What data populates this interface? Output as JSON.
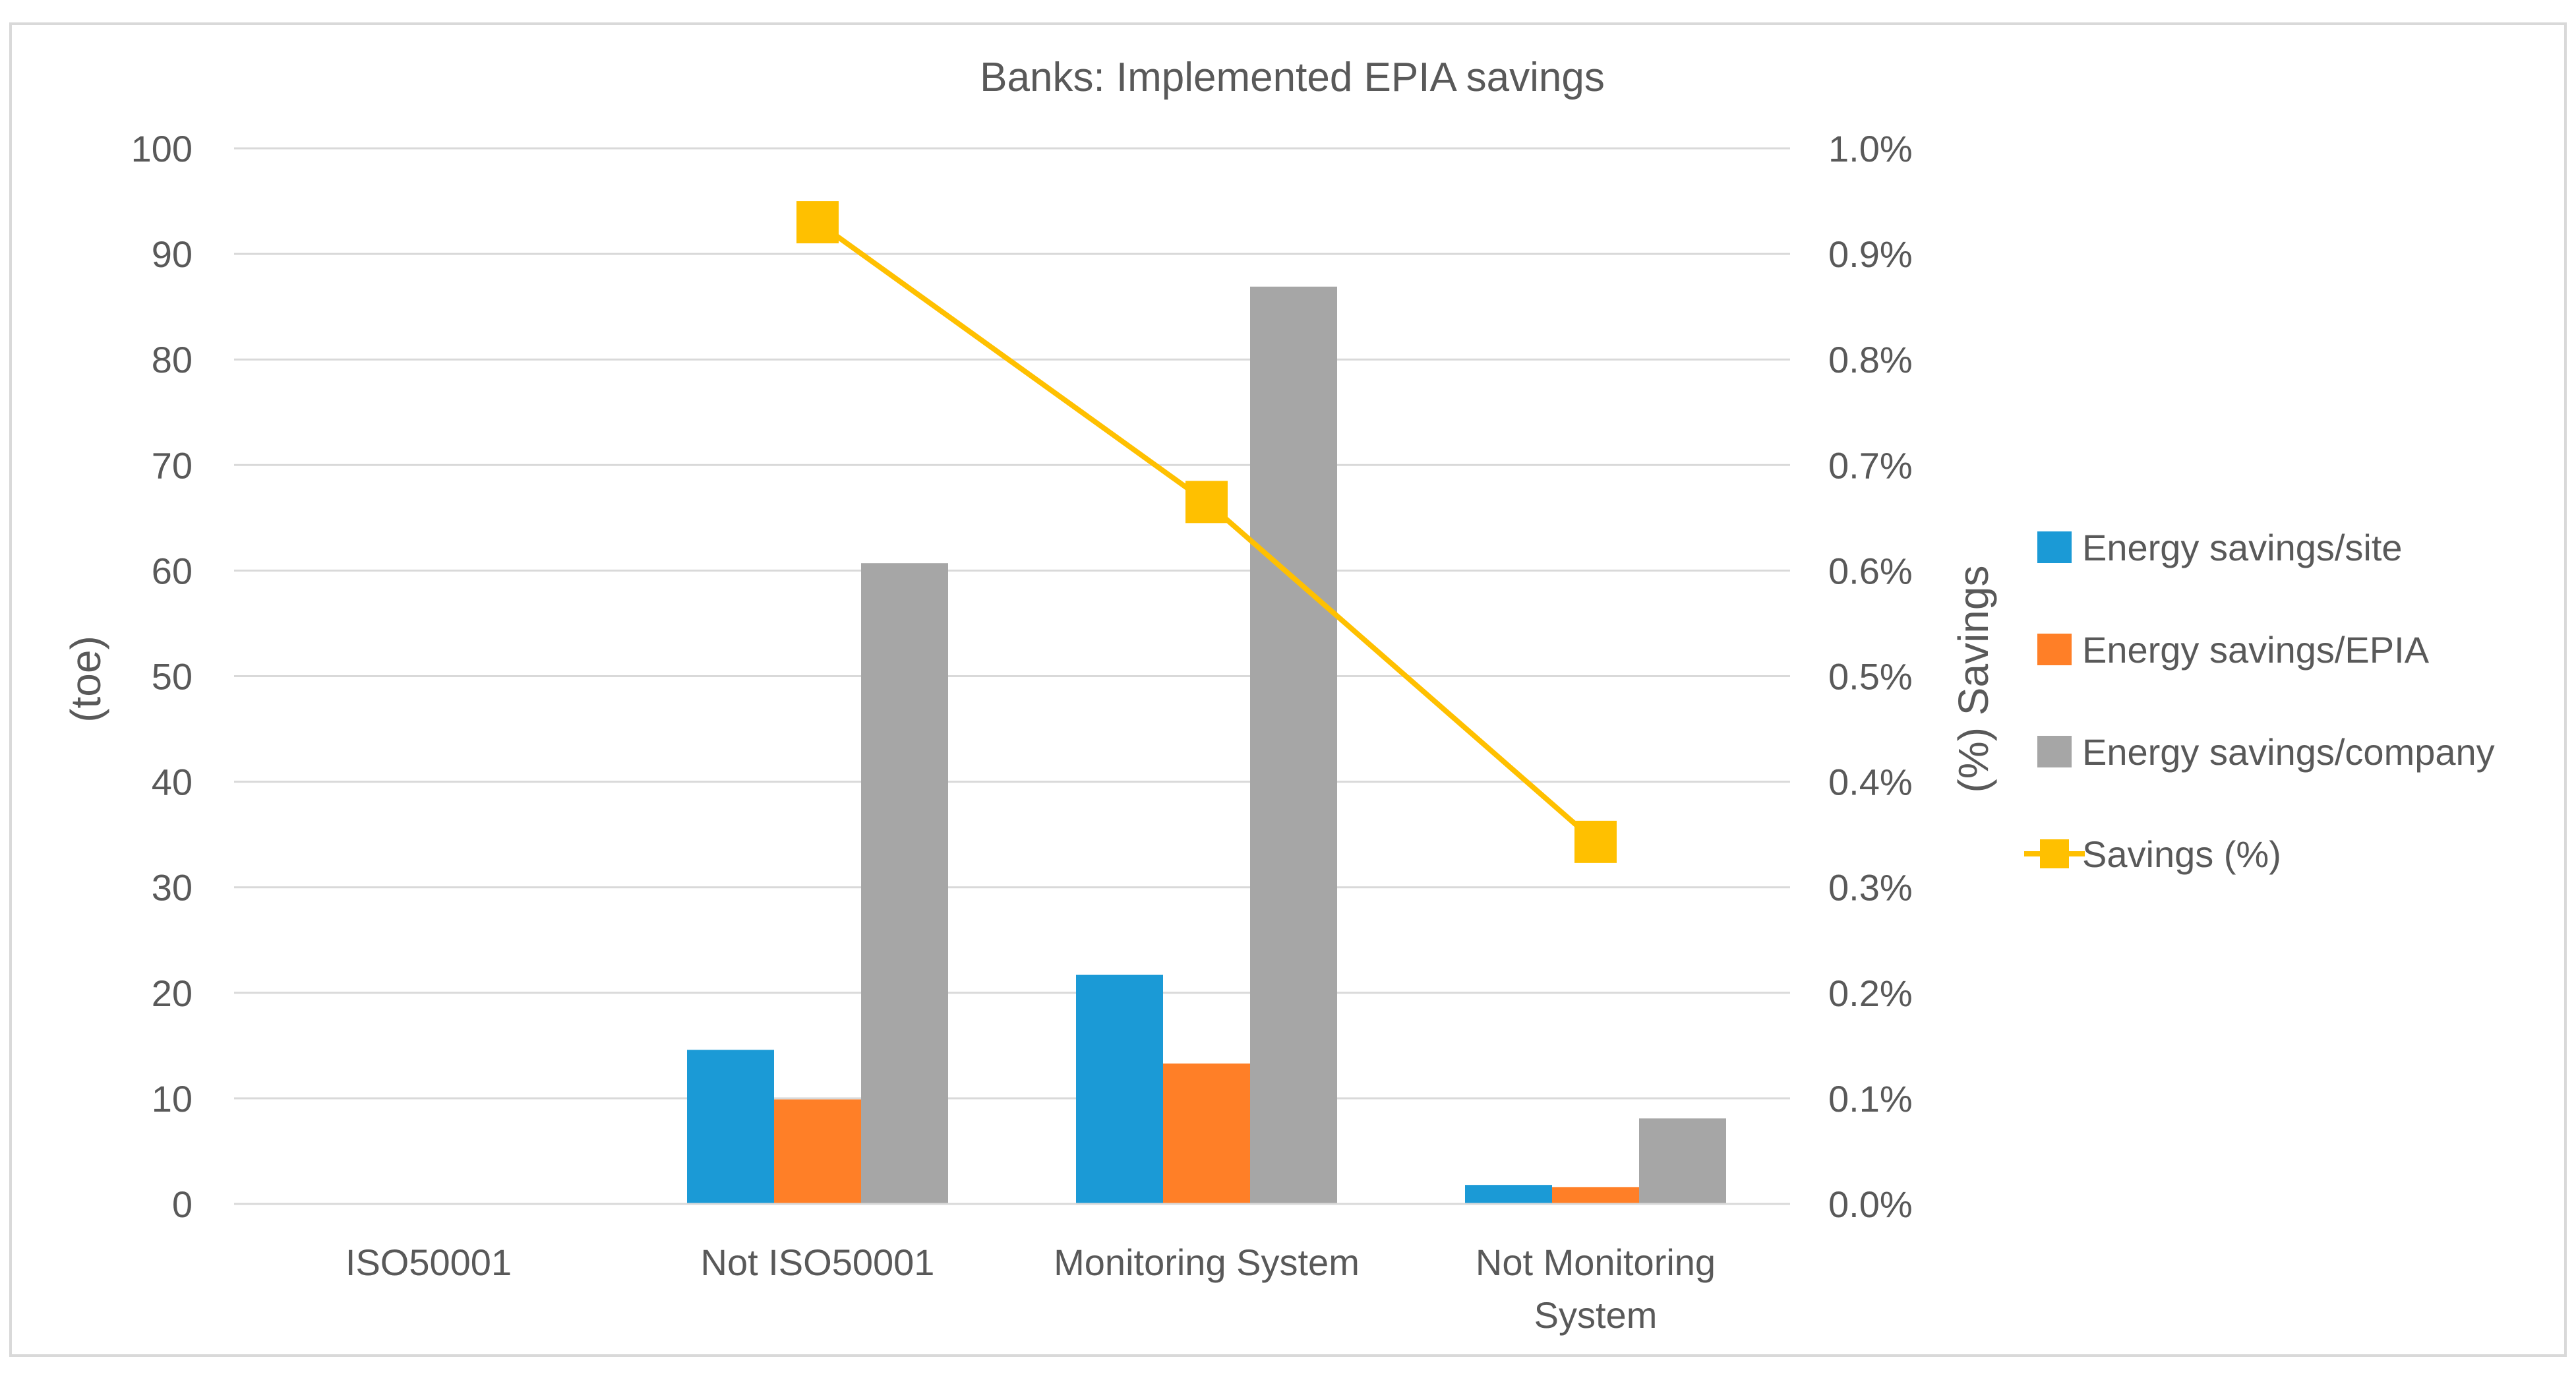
{
  "chart_data": {
    "type": "bar",
    "title": "Banks: Implemented EPIA savings",
    "ylabel": "(toe)",
    "y2label": "(%) Savings",
    "ylim": [
      0,
      100
    ],
    "yticks": [
      0,
      10,
      20,
      30,
      40,
      50,
      60,
      70,
      80,
      90,
      100
    ],
    "y2lim": [
      0,
      1.0
    ],
    "y2ticks": [
      "0.0%",
      "0.1%",
      "0.2%",
      "0.3%",
      "0.4%",
      "0.5%",
      "0.6%",
      "0.7%",
      "0.8%",
      "0.9%",
      "1.0%"
    ],
    "categories": [
      [
        "ISO50001"
      ],
      [
        "Not ISO50001"
      ],
      [
        "Monitoring System"
      ],
      [
        "Not Monitoring",
        "System"
      ]
    ],
    "series": [
      {
        "name": "Energy savings/site",
        "kind": "bar",
        "color": "#1B9AD6",
        "values": [
          0,
          14.6,
          21.7,
          1.8
        ]
      },
      {
        "name": "Energy savings/EPIA",
        "kind": "bar",
        "color": "#FF7F27",
        "values": [
          0,
          9.9,
          13.3,
          1.6
        ]
      },
      {
        "name": "Energy savings/company",
        "kind": "bar",
        "color": "#A6A6A6",
        "values": [
          0,
          60.7,
          86.9,
          8.1
        ]
      },
      {
        "name": "Savings (%)",
        "kind": "line",
        "axis": "right",
        "color": "#FFC000",
        "values": [
          null,
          0.93,
          0.665,
          0.343
        ]
      }
    ],
    "grid": true,
    "legend": "right"
  }
}
